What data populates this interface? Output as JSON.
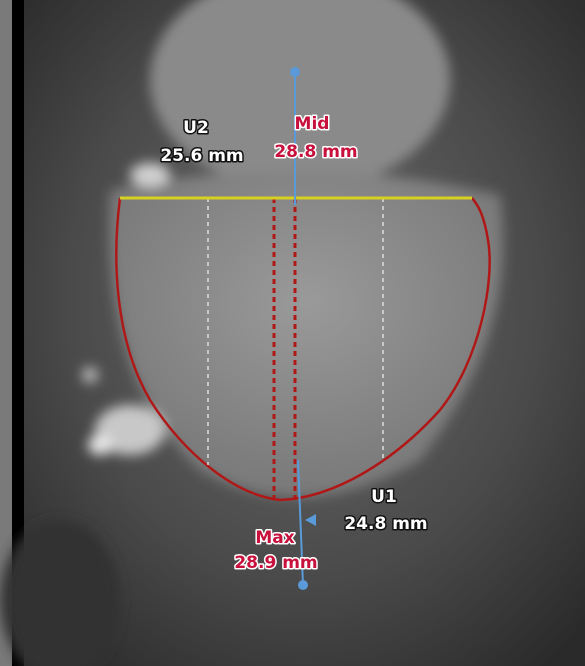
{
  "measurements": [
    {
      "name": "U2",
      "value": "25.6 mm"
    },
    {
      "name": "Mid",
      "value": "28.8 mm"
    },
    {
      "name": "U1",
      "value": "24.8 mm"
    },
    {
      "name": "Max",
      "value": "28.9 mm"
    }
  ]
}
